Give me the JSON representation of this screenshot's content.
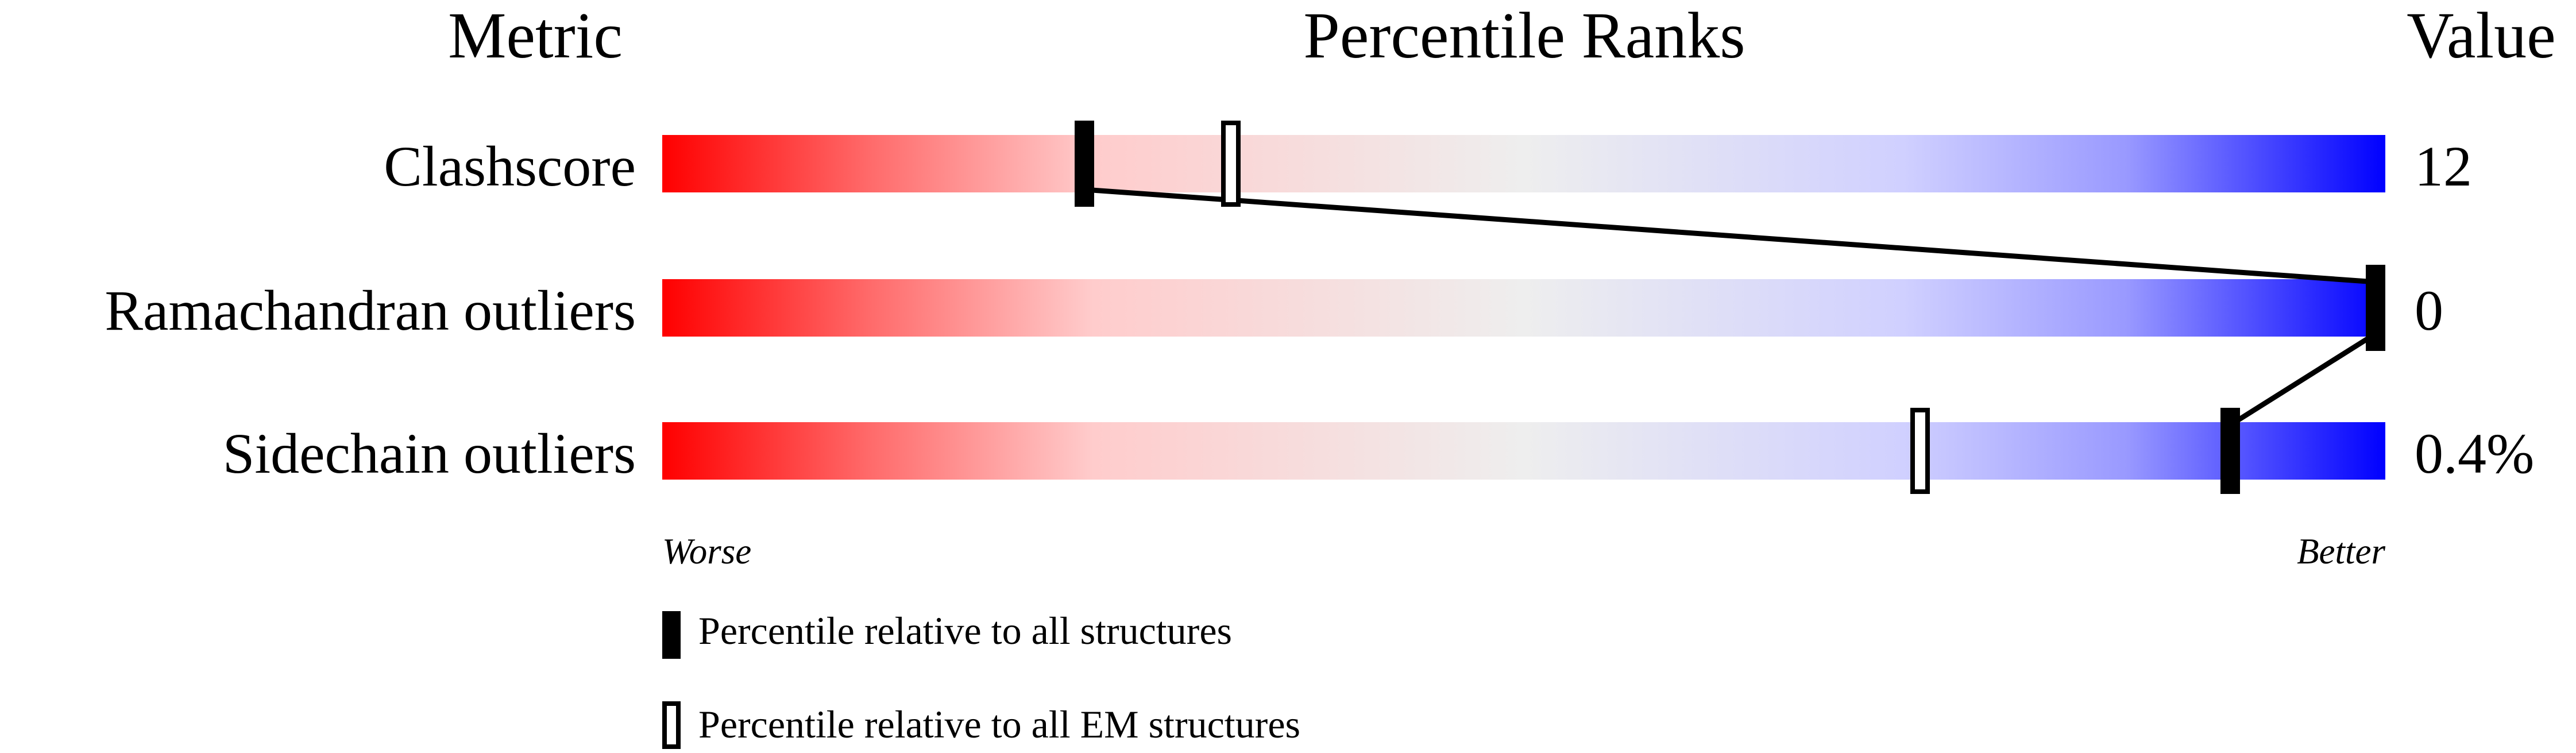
{
  "chart_data": {
    "type": "percentile-slider",
    "headers": {
      "metric": "Metric",
      "ranks": "Percentile Ranks",
      "value": "Value"
    },
    "xlim": [
      0,
      100
    ],
    "metrics": [
      {
        "name": "Clashscore",
        "value": "12",
        "percentile_all": 24.5,
        "percentile_em": 33
      },
      {
        "name": "Ramachandran outliers",
        "value": "0",
        "percentile_all": 100,
        "percentile_em": null
      },
      {
        "name": "Sidechain outliers",
        "value": "0.4%",
        "percentile_all": 91,
        "percentile_em": 73
      }
    ],
    "scale_labels": {
      "left": "Worse",
      "right": "Better"
    },
    "legend": [
      {
        "label": "Percentile relative to all structures",
        "style": "filled"
      },
      {
        "label": "Percentile relative to all EM structures",
        "style": "open"
      }
    ],
    "colors": {
      "worse": "#ff0000",
      "middle": "#eeeeee",
      "better": "#0000ff",
      "marker": "#000000"
    }
  }
}
